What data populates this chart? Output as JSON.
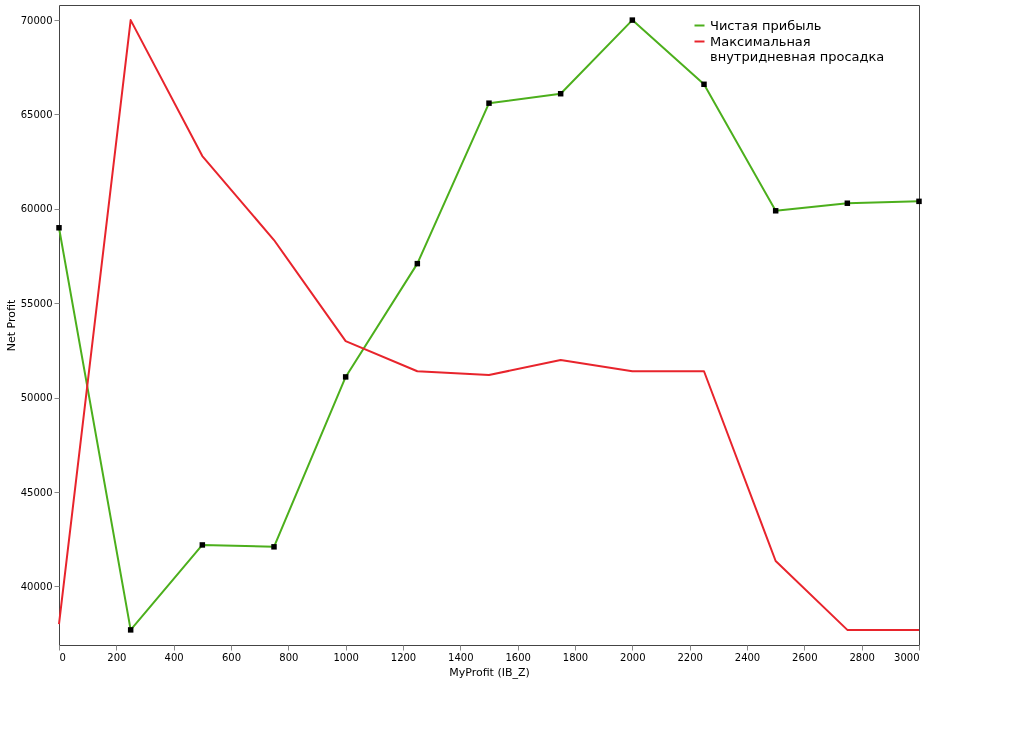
{
  "chart_data": {
    "type": "line",
    "xlabel": "MyProfit (IB_Z)",
    "ylabel": "Net Profit",
    "x": [
      0,
      250,
      500,
      750,
      1000,
      1250,
      1500,
      1750,
      2000,
      2250,
      2500,
      2750,
      3000
    ],
    "series": [
      {
        "name": "Чистая прибыль",
        "color": "#4caf1c",
        "marker": "square",
        "values": [
          59000,
          37700,
          42200,
          42100,
          51100,
          57100,
          65600,
          66100,
          70000,
          66600,
          59900,
          60300,
          60400
        ]
      },
      {
        "name": "Максимальная внутридневная просадка",
        "color": "#e8242c",
        "marker": "none",
        "values": [
          38000,
          70000,
          62800,
          58350,
          53000,
          51400,
          51200,
          52000,
          51400,
          51400,
          41350,
          37700,
          37700
        ]
      }
    ],
    "xlim": [
      0,
      3000
    ],
    "xticks": [
      0,
      200,
      400,
      600,
      800,
      1000,
      1200,
      1400,
      1600,
      1800,
      2000,
      2200,
      2400,
      2600,
      2800,
      3000
    ],
    "ylim": [
      36900,
      70800
    ],
    "yticks": [
      40000,
      45000,
      50000,
      55000,
      60000,
      65000,
      70000
    ],
    "grid": false,
    "legend": "top right",
    "line_style": "solid"
  }
}
